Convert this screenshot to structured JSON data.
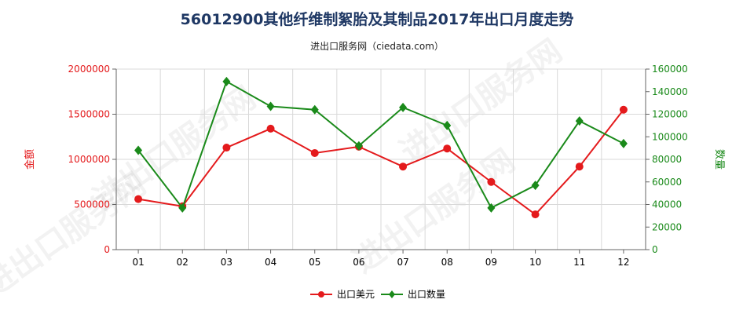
{
  "title": "56012900其他纤维制絮胎及其制品2017年出口月度走势",
  "subtitle": "进出口服务网（ciedata.com）",
  "watermark": "进出口服务网",
  "colors": {
    "value": "#e41a1c",
    "quantity": "#1a8a1a",
    "grid": "#d9d9d9",
    "axis": "#666666"
  },
  "chart_data": {
    "type": "line",
    "categories": [
      "01",
      "02",
      "03",
      "04",
      "05",
      "06",
      "07",
      "08",
      "09",
      "10",
      "11",
      "12"
    ],
    "left_axis": {
      "label": "金额",
      "ylim": [
        0,
        2000000
      ],
      "ticks": [
        0,
        500000,
        1000000,
        1500000,
        2000000
      ],
      "tick_labels": [
        "0",
        "500000",
        "1000000",
        "1500000",
        "2000000"
      ]
    },
    "right_axis": {
      "label": "数量",
      "ylim": [
        0,
        160000
      ],
      "ticks": [
        0,
        20000,
        40000,
        60000,
        80000,
        100000,
        120000,
        140000,
        160000
      ],
      "tick_labels": [
        "0",
        "20000",
        "40000",
        "60000",
        "80000",
        "100000",
        "120000",
        "140000",
        "160000"
      ]
    },
    "series": [
      {
        "name": "出口美元",
        "axis": "left",
        "values": [
          560000,
          480000,
          1130000,
          1340000,
          1070000,
          1140000,
          920000,
          1120000,
          750000,
          390000,
          920000,
          1550000
        ]
      },
      {
        "name": "出口数量",
        "axis": "right",
        "values": [
          88000,
          37000,
          149000,
          127000,
          124000,
          92000,
          126000,
          110000,
          37000,
          57000,
          114000,
          94000
        ]
      }
    ],
    "legend_position": "bottom-center"
  }
}
